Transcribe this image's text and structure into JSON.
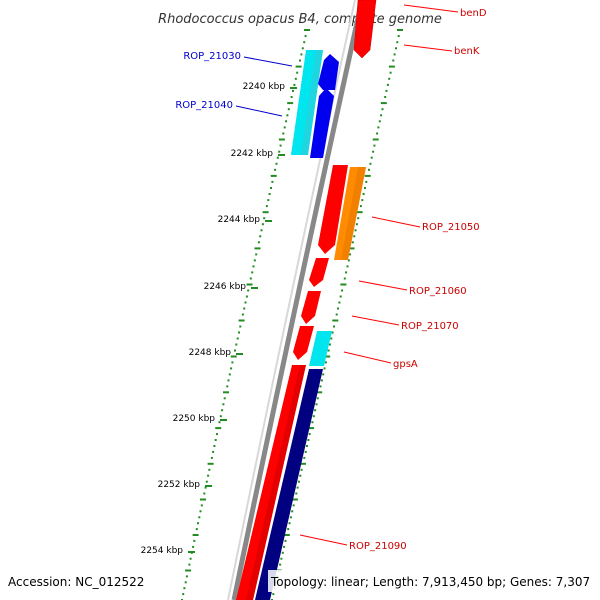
{
  "title": "Rhodococcus opacus B4, complete genome",
  "footer": {
    "accession": "Accession: NC_012522",
    "summary": "Topology: linear; Length: 7,913,450 bp; Genes: 7,307"
  },
  "ticks": [
    "2240 kbp",
    "2242 kbp",
    "2244 kbp",
    "2246 kbp",
    "2248 kbp",
    "2250 kbp",
    "2252 kbp",
    "2254 kbp"
  ],
  "genes": [
    {
      "name": "benD",
      "color": "#ff0000",
      "strand": "forward",
      "kind": "cds"
    },
    {
      "name": "benK",
      "color": "#ff0000",
      "strand": "forward",
      "kind": "cds"
    },
    {
      "name": "ROP_21030",
      "color": "#0000cc",
      "strand": "reverse",
      "kind": "cds"
    },
    {
      "name": "ROP_21040",
      "color": "#0000cc",
      "strand": "reverse",
      "kind": "cds"
    },
    {
      "name": "ROP_21050",
      "color": "#cc0000",
      "strand": "forward",
      "kind": "cds"
    },
    {
      "name": "ROP_21060",
      "color": "#cc0000",
      "strand": "forward",
      "kind": "cds"
    },
    {
      "name": "ROP_21070",
      "color": "#cc0000",
      "strand": "forward",
      "kind": "cds"
    },
    {
      "name": "gpsA",
      "color": "#cc0000",
      "strand": "forward",
      "kind": "cds"
    },
    {
      "name": "ROP_21090",
      "color": "#cc0000",
      "strand": "forward",
      "kind": "cds"
    }
  ],
  "colors": {
    "backbone": "#888888",
    "gc_ticks": "#228b22",
    "forward_cds": "#ff0000",
    "reverse_cds": "#0000ee",
    "feature_orange": "#ff8c00",
    "feature_cyan": "#00e5ee",
    "feature_navy": "#000080"
  }
}
